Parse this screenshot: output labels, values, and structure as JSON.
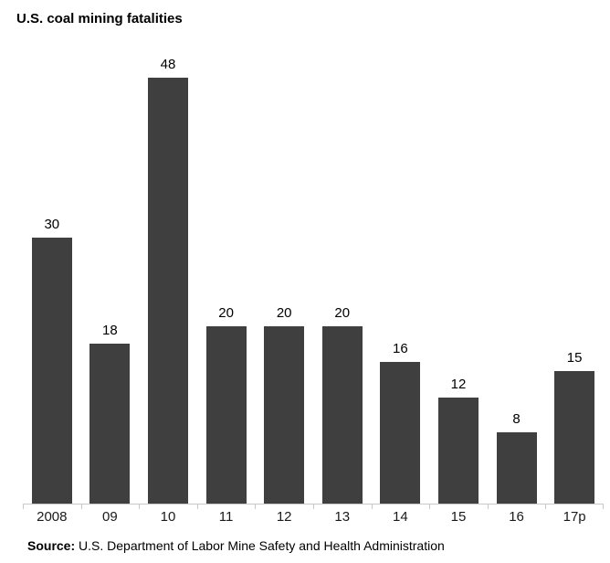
{
  "chart_data": {
    "type": "bar",
    "title": "U.S. coal mining fatalities",
    "categories": [
      "2008",
      "09",
      "10",
      "11",
      "12",
      "13",
      "14",
      "15",
      "16",
      "17p"
    ],
    "values": [
      30,
      18,
      48,
      20,
      20,
      20,
      16,
      12,
      8,
      15
    ],
    "xlabel": "",
    "ylabel": "",
    "ylim": [
      0,
      50
    ],
    "grid": false,
    "legend": "none",
    "data_labels_shown": true,
    "bar_color": "#3f3f3f",
    "axis_color": "#c9c9c9",
    "label_color": "#000000"
  },
  "source": {
    "label": "Source:",
    "text": " U.S. Department of Labor Mine Safety and Health Administration"
  }
}
